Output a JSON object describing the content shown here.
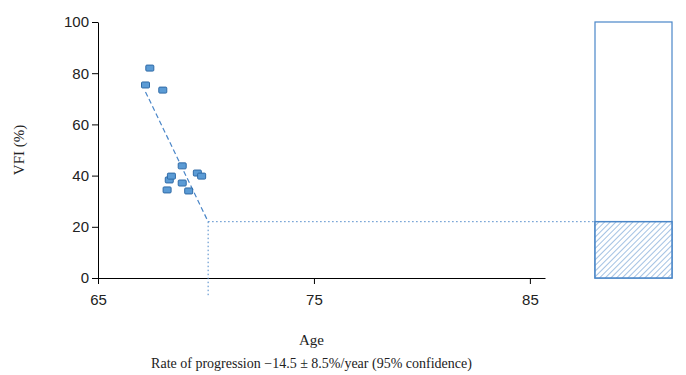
{
  "chart_data": {
    "type": "scatter",
    "x_label": "Age",
    "y_label": "VFI (%)",
    "caption": "Rate of progression −14.5 ± 8.5%/year (95% confidence)",
    "x": [
      67.2,
      67.4,
      68.0,
      68.9,
      68.3,
      68.4,
      68.2,
      68.9,
      69.2,
      69.6,
      69.8
    ],
    "values": [
      75.4,
      82,
      73.4,
      43.8,
      38.3,
      39.8,
      34.4,
      37.1,
      34.0,
      41.0,
      39.8
    ],
    "color": "#5b9bd5",
    "marker": "square",
    "xlim": [
      65,
      85.7
    ],
    "xticks": [
      65,
      75,
      85
    ],
    "ylim": [
      0,
      100
    ],
    "yticks": [
      0,
      20,
      40,
      60,
      80,
      100
    ],
    "trend_x": [
      67.2,
      70.1
    ],
    "trend_y": [
      72.7,
      22
    ]
  }
}
